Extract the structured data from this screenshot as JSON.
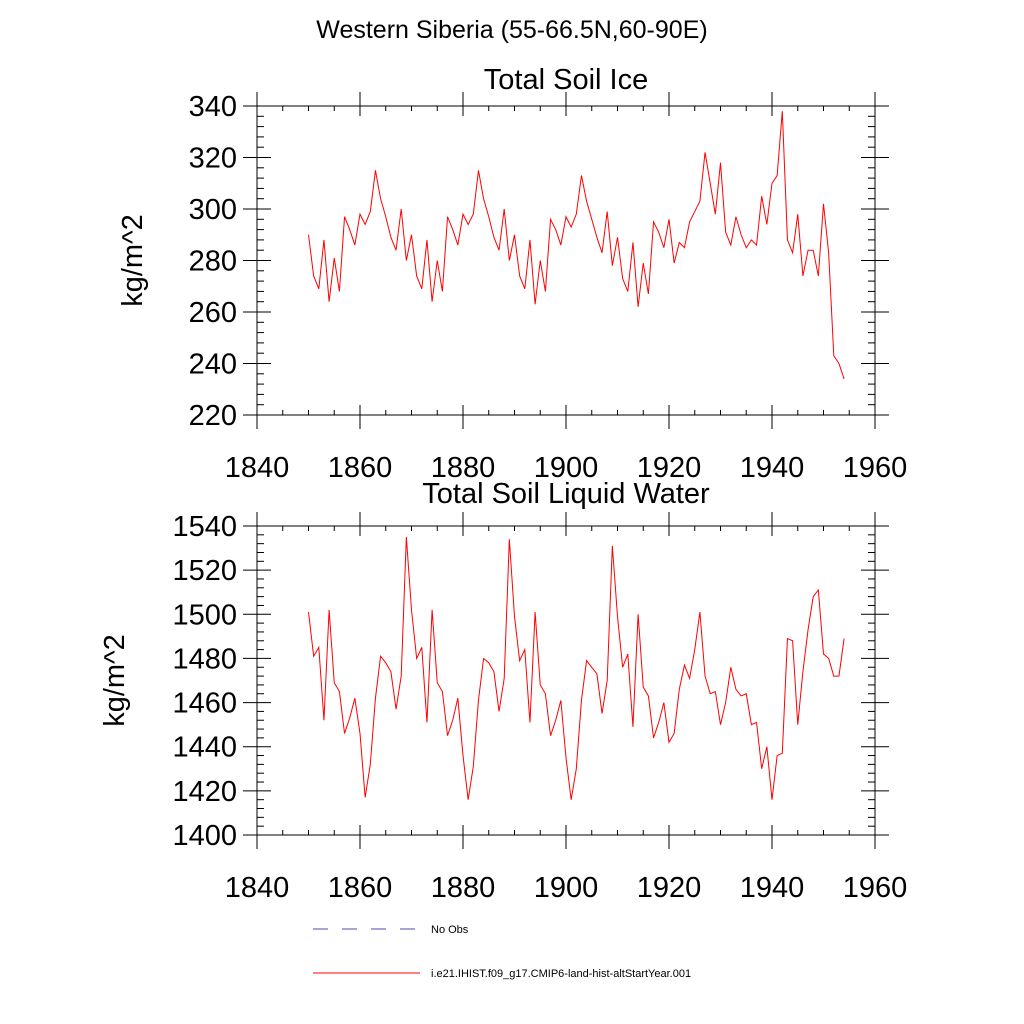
{
  "page": {
    "title": "Western Siberia (55-66.5N,60-90E)"
  },
  "legend": {
    "items": [
      {
        "label": "No Obs",
        "color": "#4b4bb4",
        "style": "dashed"
      },
      {
        "label": "i.e21.IHIST.f09_g17.CMIP6-land-hist-altStartYear.001",
        "color": "#ff0000",
        "style": "solid"
      }
    ]
  },
  "chart_data": [
    {
      "type": "line",
      "title": "Total Soil Ice",
      "xlabel": "",
      "ylabel": "kg/m^2",
      "xlim": [
        1840,
        1960
      ],
      "ylim": [
        220,
        340
      ],
      "xticks": [
        1840,
        1860,
        1880,
        1900,
        1920,
        1940,
        1960
      ],
      "yticks": [
        220,
        240,
        260,
        280,
        300,
        320,
        340
      ],
      "grid": false,
      "series": [
        {
          "color": "#ff0000",
          "x": [
            1850,
            1851,
            1852,
            1853,
            1854,
            1855,
            1856,
            1857,
            1858,
            1859,
            1860,
            1861,
            1862,
            1863,
            1864,
            1865,
            1866,
            1867,
            1868,
            1869,
            1870,
            1871,
            1872,
            1873,
            1874,
            1875,
            1876,
            1877,
            1878,
            1879,
            1880,
            1881,
            1882,
            1883,
            1884,
            1885,
            1886,
            1887,
            1888,
            1889,
            1890,
            1891,
            1892,
            1893,
            1894,
            1895,
            1896,
            1897,
            1898,
            1899,
            1900,
            1901,
            1902,
            1903,
            1904,
            1905,
            1906,
            1907,
            1908,
            1909,
            1910,
            1911,
            1912,
            1913,
            1914,
            1915,
            1916,
            1917,
            1918,
            1919,
            1920,
            1921,
            1922,
            1923,
            1924,
            1925,
            1926,
            1927,
            1928,
            1929,
            1930,
            1931,
            1932,
            1933,
            1934,
            1935,
            1936,
            1937,
            1938,
            1939,
            1940,
            1941,
            1942,
            1943,
            1944,
            1945,
            1946,
            1947,
            1948,
            1949,
            1950,
            1951,
            1952,
            1953,
            1954
          ],
          "values": [
            290,
            274,
            269,
            288,
            264,
            281,
            268,
            297,
            292,
            286,
            298,
            294,
            299,
            315,
            304,
            297,
            289,
            284,
            300,
            280,
            290,
            274,
            269,
            288,
            264,
            280,
            268,
            297,
            292,
            286,
            298,
            294,
            298,
            315,
            304,
            297,
            289,
            284,
            300,
            280,
            290,
            274,
            269,
            288,
            263,
            280,
            268,
            296,
            292,
            286,
            297,
            293,
            298,
            313,
            303,
            296,
            289,
            283,
            299,
            278,
            289,
            273,
            268,
            287,
            262,
            279,
            267,
            295,
            291,
            285,
            296,
            279,
            287,
            285,
            295,
            299,
            303,
            322,
            310,
            298,
            318,
            291,
            286,
            297,
            290,
            285,
            288,
            286,
            305,
            294,
            310,
            313,
            338,
            288,
            283,
            298,
            274,
            284,
            284,
            274,
            302,
            283,
            243,
            240,
            234
          ]
        }
      ]
    },
    {
      "type": "line",
      "title": "Total Soil Liquid Water",
      "xlabel": "",
      "ylabel": "kg/m^2",
      "xlim": [
        1840,
        1960
      ],
      "ylim": [
        1400,
        1540
      ],
      "xticks": [
        1840,
        1860,
        1880,
        1900,
        1920,
        1940,
        1960
      ],
      "yticks": [
        1400,
        1420,
        1440,
        1460,
        1480,
        1500,
        1520,
        1540
      ],
      "grid": false,
      "series": [
        {
          "color": "#ff0000",
          "x": [
            1850,
            1851,
            1852,
            1853,
            1854,
            1855,
            1856,
            1857,
            1858,
            1859,
            1860,
            1861,
            1862,
            1863,
            1864,
            1865,
            1866,
            1867,
            1868,
            1869,
            1870,
            1871,
            1872,
            1873,
            1874,
            1875,
            1876,
            1877,
            1878,
            1879,
            1880,
            1881,
            1882,
            1883,
            1884,
            1885,
            1886,
            1887,
            1888,
            1889,
            1890,
            1891,
            1892,
            1893,
            1894,
            1895,
            1896,
            1897,
            1898,
            1899,
            1900,
            1901,
            1902,
            1903,
            1904,
            1905,
            1906,
            1907,
            1908,
            1909,
            1910,
            1911,
            1912,
            1913,
            1914,
            1915,
            1916,
            1917,
            1918,
            1919,
            1920,
            1921,
            1922,
            1923,
            1924,
            1925,
            1926,
            1927,
            1928,
            1929,
            1930,
            1931,
            1932,
            1933,
            1934,
            1935,
            1936,
            1937,
            1938,
            1939,
            1940,
            1941,
            1942,
            1943,
            1944,
            1945,
            1946,
            1947,
            1948,
            1949,
            1950,
            1951,
            1952,
            1953,
            1954
          ],
          "values": [
            1501,
            1481,
            1485,
            1452,
            1502,
            1469,
            1465,
            1446,
            1453,
            1462,
            1446,
            1417,
            1432,
            1462,
            1481,
            1478,
            1474,
            1457,
            1472,
            1535,
            1502,
            1480,
            1485,
            1451,
            1502,
            1469,
            1465,
            1445,
            1452,
            1462,
            1436,
            1416,
            1431,
            1461,
            1480,
            1478,
            1474,
            1456,
            1471,
            1534,
            1499,
            1479,
            1484,
            1451,
            1501,
            1468,
            1464,
            1445,
            1452,
            1461,
            1435,
            1416,
            1430,
            1461,
            1479,
            1476,
            1473,
            1455,
            1470,
            1531,
            1499,
            1476,
            1482,
            1449,
            1500,
            1467,
            1463,
            1444,
            1451,
            1460,
            1442,
            1446,
            1466,
            1477,
            1471,
            1484,
            1501,
            1472,
            1464,
            1465,
            1450,
            1460,
            1476,
            1466,
            1463,
            1464,
            1450,
            1451,
            1430,
            1440,
            1416,
            1436,
            1437,
            1489,
            1488,
            1450,
            1474,
            1493,
            1508,
            1511,
            1482,
            1480,
            1472,
            1472,
            1489
          ]
        }
      ]
    }
  ]
}
